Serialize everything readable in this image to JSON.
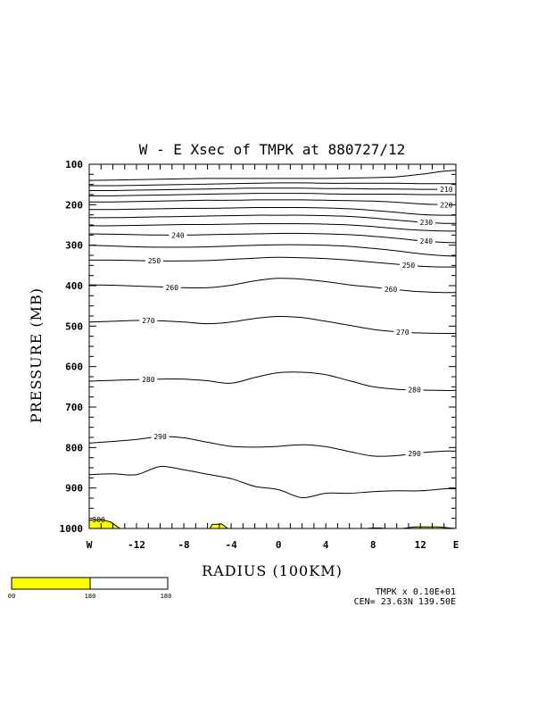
{
  "chart_data": {
    "type": "contour",
    "title": "W - E Xsec of TMPK at 880727/12",
    "xlabel": "RADIUS (100KM)",
    "ylabel": "PRESSURE (MB)",
    "x_ticks": [
      {
        "v": -16,
        "label": "W"
      },
      {
        "v": -12,
        "label": "-12"
      },
      {
        "v": -8,
        "label": "-8"
      },
      {
        "v": -4,
        "label": "-4"
      },
      {
        "v": 0,
        "label": "0"
      },
      {
        "v": 4,
        "label": "4"
      },
      {
        "v": 8,
        "label": "8"
      },
      {
        "v": 12,
        "label": "12"
      },
      {
        "v": 15,
        "label": "E"
      }
    ],
    "y_ticks": [
      {
        "v": 100,
        "label": "100"
      },
      {
        "v": 200,
        "label": "200"
      },
      {
        "v": 300,
        "label": "300"
      },
      {
        "v": 400,
        "label": "400"
      },
      {
        "v": 500,
        "label": "500"
      },
      {
        "v": 600,
        "label": "600"
      },
      {
        "v": 700,
        "label": "700"
      },
      {
        "v": 800,
        "label": "800"
      },
      {
        "v": 900,
        "label": "900"
      },
      {
        "v": 1000,
        "label": "1000"
      }
    ],
    "xlim": [
      -16,
      15
    ],
    "ylim": [
      1000,
      100
    ],
    "contour_x": [
      -16,
      -14,
      -12,
      -10,
      -8,
      -6,
      -4,
      -2,
      0,
      2,
      4,
      6,
      8,
      10,
      12,
      14,
      15
    ],
    "contours": [
      {
        "label": "",
        "pressures": [
          140,
          139,
          138,
          137,
          136,
          135,
          135,
          135,
          135,
          135,
          135,
          134,
          133,
          131,
          125,
          117,
          115
        ]
      },
      {
        "label": "",
        "pressures": [
          153,
          153,
          152,
          151,
          150,
          149,
          148,
          147,
          146,
          146,
          147,
          147,
          147,
          147,
          148,
          148,
          148
        ]
      },
      {
        "label": "210",
        "pressures": [
          165,
          165,
          164,
          163,
          162,
          161,
          160,
          159,
          159,
          159,
          160,
          160,
          161,
          161,
          162,
          162,
          162
        ]
      },
      {
        "label": "",
        "pressures": [
          178,
          178,
          177,
          176,
          175,
          174,
          173,
          172,
          172,
          172,
          173,
          174,
          174,
          174,
          175,
          175,
          175
        ]
      },
      {
        "label": "220",
        "pressures": [
          193,
          193,
          192,
          191,
          190,
          189,
          189,
          188,
          188,
          188,
          189,
          190,
          191,
          194,
          198,
          200,
          200
        ]
      },
      {
        "label": "",
        "pressures": [
          212,
          212,
          211,
          210,
          209,
          209,
          208,
          207,
          207,
          207,
          208,
          210,
          214,
          219,
          224,
          226,
          226
        ]
      },
      {
        "label": "230",
        "pressures": [
          232,
          232,
          231,
          230,
          229,
          228,
          227,
          226,
          226,
          226,
          227,
          229,
          233,
          238,
          243,
          246,
          246
        ]
      },
      {
        "label": "",
        "pressures": [
          252,
          252,
          251,
          250,
          249,
          249,
          248,
          247,
          247,
          247,
          248,
          250,
          254,
          259,
          263,
          265,
          265
        ]
      },
      {
        "label": "240",
        "pressures": [
          272,
          273,
          274,
          275,
          275,
          274,
          273,
          272,
          271,
          271,
          272,
          274,
          278,
          283,
          289,
          293,
          294
        ]
      },
      {
        "label": "",
        "pressures": [
          300,
          302,
          304,
          305,
          305,
          304,
          302,
          300,
          299,
          299,
          300,
          303,
          308,
          314,
          321,
          326,
          327
        ]
      },
      {
        "label": "250",
        "pressures": [
          337,
          337,
          338,
          339,
          339,
          338,
          335,
          332,
          330,
          331,
          333,
          337,
          342,
          347,
          352,
          354,
          354
        ]
      },
      {
        "label": "260",
        "pressures": [
          398,
          399,
          401,
          403,
          405,
          405,
          399,
          388,
          382,
          384,
          390,
          398,
          404,
          410,
          415,
          417,
          417
        ]
      },
      {
        "label": "270",
        "pressures": [
          490,
          488,
          486,
          487,
          490,
          494,
          490,
          481,
          476,
          479,
          488,
          498,
          508,
          514,
          517,
          518,
          518
        ]
      },
      {
        "label": "280",
        "pressures": [
          636,
          634,
          632,
          631,
          631,
          635,
          641,
          627,
          615,
          614,
          620,
          635,
          650,
          656,
          658,
          659,
          659
        ]
      },
      {
        "label": "290",
        "pressures": [
          789,
          785,
          780,
          773,
          776,
          787,
          797,
          799,
          797,
          793,
          798,
          810,
          821,
          820,
          813,
          809,
          809
        ]
      },
      {
        "label": "",
        "pressures": [
          867,
          865,
          867,
          847,
          855,
          866,
          877,
          896,
          904,
          924,
          913,
          913,
          909,
          907,
          907,
          902,
          902
        ]
      }
    ],
    "fill_regions": [
      {
        "label": "300",
        "color": "#ffff00"
      },
      {
        "label": "",
        "color": "#ffff00"
      },
      {
        "label": "",
        "color": "#ffff00"
      }
    ],
    "colorbar": {
      "fill_color": "#ffff00",
      "labels": [
        "00",
        "180",
        "180"
      ]
    },
    "footer": {
      "line1": "TMPK x 0.10E+01",
      "line2": "CEN= 23.63N 139.50E"
    }
  }
}
